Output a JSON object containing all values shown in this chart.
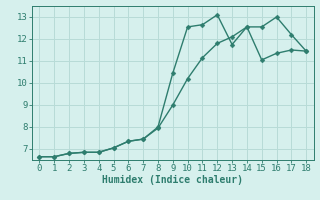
{
  "line1_x": [
    0,
    1,
    2,
    3,
    4,
    5,
    6,
    7,
    8,
    9,
    10,
    11,
    12,
    13,
    14,
    15,
    16,
    17,
    18
  ],
  "line1_y": [
    6.65,
    6.65,
    6.8,
    6.85,
    6.85,
    7.05,
    7.35,
    7.45,
    7.95,
    9.0,
    10.2,
    11.15,
    11.8,
    12.1,
    12.55,
    11.05,
    11.35,
    11.5,
    11.45
  ],
  "line2_x": [
    0,
    1,
    2,
    3,
    4,
    5,
    6,
    7,
    8,
    9,
    10,
    11,
    12,
    13,
    14,
    15,
    16,
    17,
    18
  ],
  "line2_y": [
    6.65,
    6.65,
    6.8,
    6.85,
    6.85,
    7.05,
    7.35,
    7.45,
    8.0,
    10.45,
    12.55,
    12.65,
    13.1,
    11.75,
    12.55,
    12.55,
    13.0,
    12.2,
    11.45
  ],
  "line_color": "#2e7d6e",
  "bg_color": "#d6f0ed",
  "grid_color": "#b8dbd7",
  "xlabel": "Humidex (Indice chaleur)",
  "ylim": [
    6.5,
    13.5
  ],
  "xlim": [
    -0.5,
    18.5
  ],
  "yticks": [
    7,
    8,
    9,
    10,
    11,
    12,
    13
  ],
  "xticks": [
    0,
    1,
    2,
    3,
    4,
    5,
    6,
    7,
    8,
    9,
    10,
    11,
    12,
    13,
    14,
    15,
    16,
    17,
    18
  ],
  "markersize": 2.5,
  "linewidth": 1.0,
  "xlabel_fontsize": 7,
  "tick_fontsize": 6.5
}
